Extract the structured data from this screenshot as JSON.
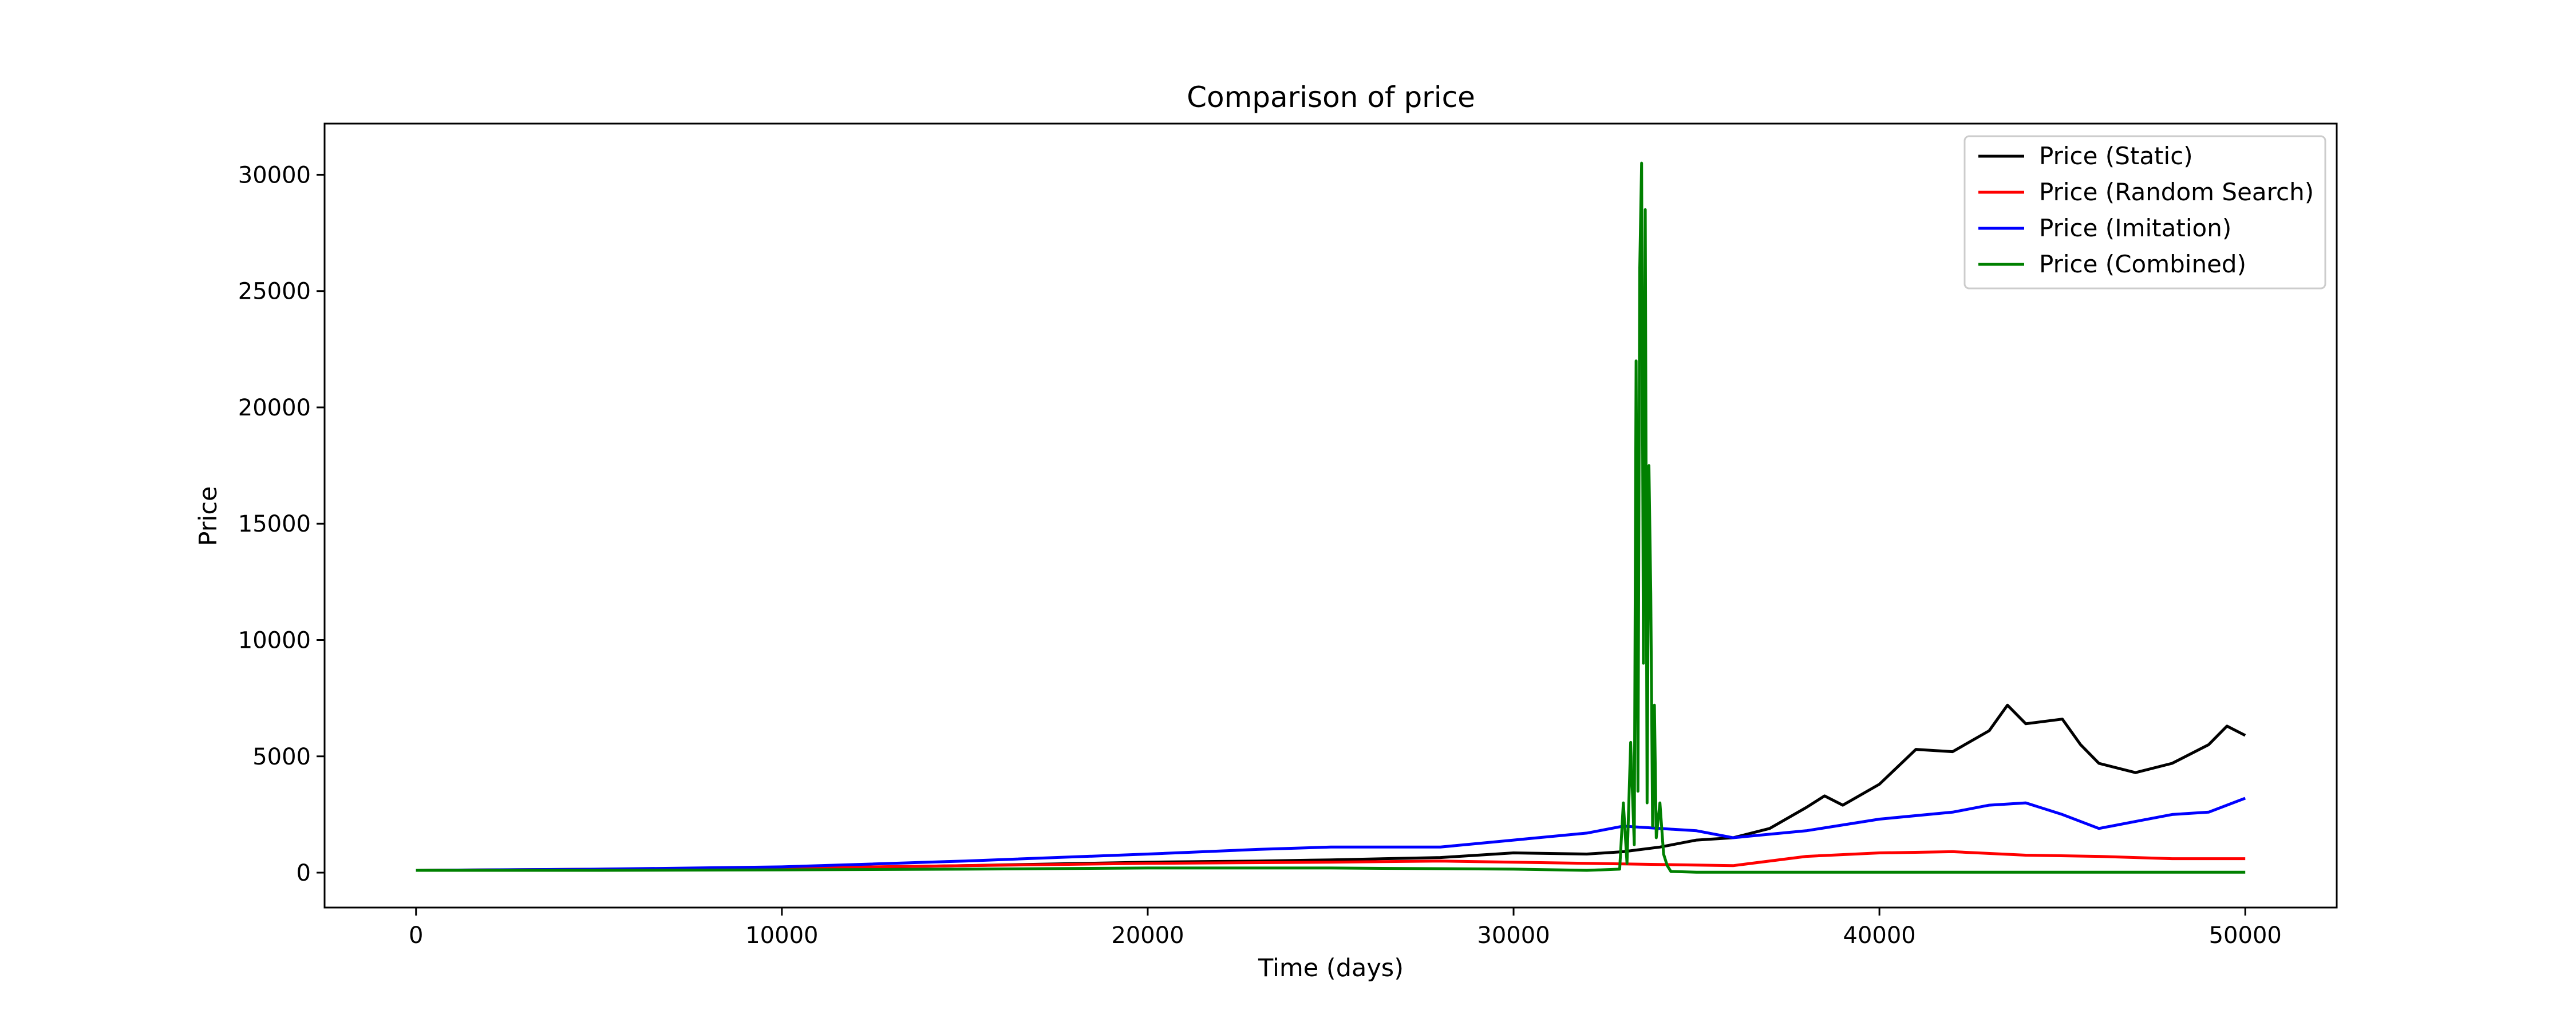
{
  "chart_data": {
    "type": "line",
    "title": "Comparison of price",
    "xlabel": "Time (days)",
    "ylabel": "Price",
    "xlim": [
      -2500,
      52500
    ],
    "ylim": [
      -1500,
      32200
    ],
    "xticks": [
      0,
      10000,
      20000,
      30000,
      40000,
      50000
    ],
    "yticks": [
      0,
      5000,
      10000,
      15000,
      20000,
      25000,
      30000
    ],
    "grid": false,
    "legend_position": "top-right",
    "series": [
      {
        "name": "Price (Static)",
        "color": "#000000",
        "x": [
          0,
          5000,
          10000,
          15000,
          20000,
          23000,
          25000,
          28000,
          30000,
          32000,
          33000,
          34000,
          35000,
          36000,
          37000,
          38000,
          38500,
          39000,
          40000,
          41000,
          42000,
          43000,
          43500,
          44000,
          45000,
          45500,
          46000,
          47000,
          48000,
          49000,
          49500,
          50000
        ],
        "y": [
          100,
          120,
          180,
          300,
          450,
          500,
          550,
          650,
          850,
          800,
          900,
          1100,
          1400,
          1500,
          1900,
          2800,
          3300,
          2900,
          3800,
          5300,
          5200,
          6100,
          7200,
          6400,
          6600,
          5500,
          4700,
          4300,
          4700,
          5500,
          6300,
          5900
        ]
      },
      {
        "name": "Price (Random Search)",
        "color": "#ff0000",
        "x": [
          0,
          10000,
          15000,
          20000,
          25000,
          28000,
          30000,
          32000,
          34000,
          36000,
          38000,
          40000,
          42000,
          44000,
          46000,
          48000,
          50000
        ],
        "y": [
          100,
          200,
          300,
          400,
          450,
          500,
          450,
          400,
          350,
          300,
          700,
          850,
          900,
          750,
          700,
          600,
          600
        ]
      },
      {
        "name": "Price (Imitation)",
        "color": "#0000ff",
        "x": [
          0,
          5000,
          10000,
          15000,
          20000,
          23000,
          25000,
          28000,
          30000,
          32000,
          33000,
          34000,
          35000,
          36000,
          38000,
          40000,
          42000,
          43000,
          44000,
          45000,
          46000,
          47000,
          48000,
          49000,
          50000
        ],
        "y": [
          100,
          150,
          250,
          500,
          800,
          1000,
          1100,
          1100,
          1400,
          1700,
          2000,
          1900,
          1800,
          1500,
          1800,
          2300,
          2600,
          2900,
          3000,
          2500,
          1900,
          2200,
          2500,
          2600,
          3200
        ]
      },
      {
        "name": "Price (Combined)",
        "color": "#008000",
        "x": [
          0,
          5000,
          10000,
          15000,
          20000,
          25000,
          30000,
          32000,
          32900,
          33000,
          33100,
          33200,
          33300,
          33350,
          33400,
          33450,
          33500,
          33550,
          33600,
          33650,
          33700,
          33750,
          33800,
          33850,
          33900,
          34000,
          34100,
          34200,
          34300,
          35000,
          40000,
          45000,
          50000
        ],
        "y": [
          100,
          100,
          120,
          150,
          200,
          200,
          150,
          100,
          150,
          3000,
          400,
          5600,
          1200,
          22000,
          3500,
          26000,
          30500,
          9000,
          28500,
          3000,
          17500,
          12000,
          2000,
          7200,
          1500,
          3000,
          800,
          300,
          50,
          20,
          20,
          20,
          20
        ]
      }
    ]
  }
}
